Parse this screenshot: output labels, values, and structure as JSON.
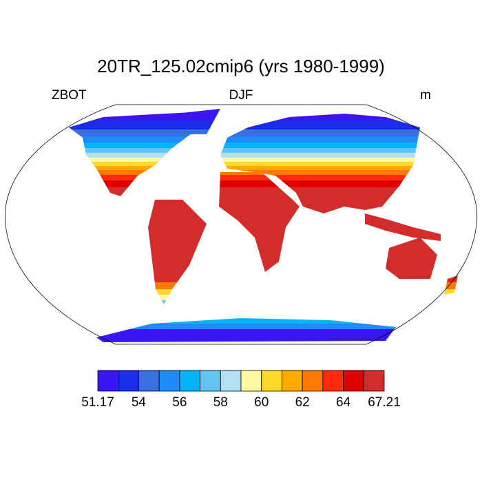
{
  "title": "20TR_125.02cmip6 (yrs 1980-1999)",
  "left_string": "ZBOT",
  "center_string": "DJF",
  "right_string": "m",
  "colorbar": {
    "colors": [
      "#3c16f2",
      "#1a2ee8",
      "#3a6fe0",
      "#1e8cf8",
      "#05b4f8",
      "#62c4f0",
      "#b4e0f4",
      "#fff9a0",
      "#ffd92a",
      "#ffaa00",
      "#ff7800",
      "#ff2b0a",
      "#e00000",
      "#d22c2c"
    ],
    "ticks": [
      51.17,
      54,
      56,
      58,
      60,
      62,
      64,
      67.21
    ]
  }
}
